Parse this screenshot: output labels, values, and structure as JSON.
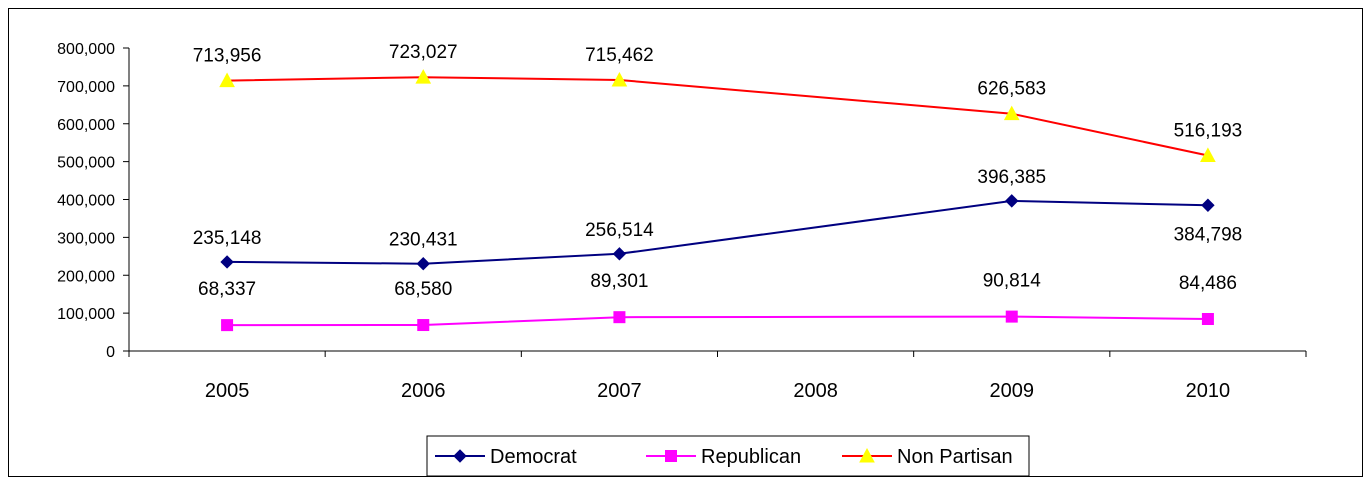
{
  "chart_data": {
    "type": "line",
    "title": "",
    "xlabel": "",
    "ylabel": "",
    "categories": [
      "2005",
      "2006",
      "2007",
      "2008",
      "2009",
      "2010"
    ],
    "ylim": [
      0,
      800000
    ],
    "ytick_step": 100000,
    "y_tick_labels": [
      "0",
      "100,000",
      "200,000",
      "300,000",
      "400,000",
      "500,000",
      "600,000",
      "700,000",
      "800,000"
    ],
    "grid": false,
    "legend_position": "bottom",
    "series": [
      {
        "name": "Democrat",
        "color": "#000080",
        "marker": "diamond",
        "values": [
          235148,
          230431,
          256514,
          null,
          396385,
          384798
        ],
        "labels": [
          "235,148",
          "230,431",
          "256,514",
          "",
          "396,385",
          "384,798"
        ]
      },
      {
        "name": "Republican",
        "color": "#ff00ff",
        "marker": "square",
        "values": [
          68337,
          68580,
          89301,
          null,
          90814,
          84486
        ],
        "labels": [
          "68,337",
          "68,580",
          "89,301",
          "",
          "90,814",
          "84,486"
        ]
      },
      {
        "name": "Non Partisan",
        "color": "#ff0000",
        "marker_color": "#ffff00",
        "marker": "triangle",
        "values": [
          713956,
          723027,
          715462,
          null,
          626583,
          516193
        ],
        "labels": [
          "713,956",
          "723,027",
          "715,462",
          "",
          "626,583",
          "516,193"
        ]
      }
    ]
  }
}
